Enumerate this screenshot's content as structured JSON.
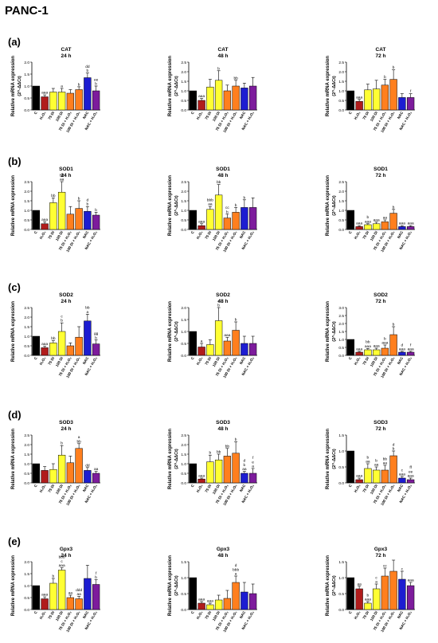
{
  "figure_title": "PANC-1",
  "colors": {
    "C": "#000000",
    "H2O2": "#b01c1c",
    "75 Di": "#ffff33",
    "100 Di": "#ffff33",
    "75 Di + H2O2": "#ff7f1e",
    "100 Di + H2O2": "#ff7f1e",
    "NAC": "#1d1dd1",
    "NAC + H2O2": "#7d1c9c"
  },
  "chart_data": [
    {
      "panel": "(a)",
      "type": "bar",
      "gene": "CAT",
      "time": "24 h",
      "ylabel": "Relative mRNA expression",
      "ylabel2": "(2^-ΔΔCt)",
      "yticks": [
        "0.0",
        "0.5",
        "1.0",
        "1.5",
        "2.0"
      ],
      "ylim": [
        0,
        2.0
      ],
      "categories": [
        "C",
        "H₂O₂",
        "75 Di",
        "100 Di",
        "75 Di + H₂O₂",
        "100 Di + H₂O₂",
        "NAC",
        "NAC + H₂O₂"
      ],
      "values": [
        1.0,
        0.55,
        0.75,
        0.75,
        0.7,
        0.85,
        1.35,
        0.8
      ],
      "errors": [
        0,
        0.08,
        0.15,
        0.15,
        0.15,
        0.12,
        0.2,
        0.2
      ],
      "labels": [
        "",
        "aaa",
        "",
        "a",
        "",
        "b",
        "dd\nb",
        "ee\nb"
      ]
    },
    {
      "panel": "(a)",
      "type": "bar",
      "gene": "CAT",
      "time": "48 h",
      "ylabel": "Relative mRNA expression",
      "ylabel2": "(2^-ΔΔCt)",
      "yticks": [
        "0.0",
        "0.5",
        "1.0",
        "1.5",
        "2.0",
        "2.5"
      ],
      "ylim": [
        0,
        2.5
      ],
      "categories": [
        "C",
        "H₂O₂",
        "75 Di",
        "100 Di",
        "75 Di + H₂O₂",
        "100 Di + H₂O₂",
        "NAC",
        "NAC + H₂O₂"
      ],
      "values": [
        1.0,
        0.5,
        1.2,
        1.55,
        1.0,
        1.25,
        1.15,
        1.25
      ],
      "errors": [
        0,
        0.1,
        0.4,
        0.5,
        0.3,
        0.3,
        0.25,
        0.45
      ],
      "labels": [
        "",
        "aaa",
        "",
        "b",
        "",
        "bb",
        "",
        ""
      ]
    },
    {
      "panel": "(a)",
      "type": "bar",
      "gene": "CAT",
      "time": "72 h",
      "ylabel": "Relative mRNA expression",
      "ylabel2": "(2^-ΔΔCt)",
      "yticks": [
        "0.0",
        "0.5",
        "1.0",
        "1.5",
        "2.0",
        "2.5"
      ],
      "ylim": [
        0,
        2.5
      ],
      "categories": [
        "C",
        "H₂O₂",
        "75 Di",
        "100 Di",
        "75 Di + H₂O₂",
        "100 Di + H₂O₂",
        "NAC",
        "NAC + H₂O₂"
      ],
      "values": [
        1.0,
        0.45,
        1.05,
        1.1,
        1.3,
        1.6,
        0.65,
        0.65
      ],
      "errors": [
        0,
        0.1,
        0.3,
        0.45,
        0.3,
        0.5,
        0.2,
        0.2
      ],
      "labels": [
        "",
        "aaa",
        "",
        "",
        "b",
        "b",
        "",
        "f"
      ]
    },
    {
      "panel": "(b)",
      "type": "bar",
      "gene": "SOD1",
      "time": "24 h",
      "ylabel": "Relative mRNA expression",
      "ylabel2": "",
      "yticks": [
        "0.0",
        "0.5",
        "1.0",
        "1.5",
        "2.0",
        "2.5"
      ],
      "ylim": [
        0,
        2.5
      ],
      "categories": [
        "C",
        "H₂O₂",
        "75 Di",
        "100 Di",
        "75 Di + H₂O₂",
        "100 Di + H₂O₂",
        "NAC",
        "NAC + H₂O₂"
      ],
      "values": [
        1.0,
        0.3,
        1.4,
        1.95,
        0.8,
        1.1,
        0.95,
        0.75
      ],
      "errors": [
        0,
        0.1,
        0.25,
        0.55,
        0.4,
        0.4,
        0.25,
        0.15
      ],
      "labels": [
        "",
        "aaa",
        "bb",
        "bb\naa",
        "",
        "b",
        "d\nb",
        "b"
      ]
    },
    {
      "panel": "(b)",
      "type": "bar",
      "gene": "SOD1",
      "time": "48 h",
      "ylabel": "Relative mRNA expression",
      "ylabel2": "(2^-ΔΔCt)",
      "yticks": [
        "0.0",
        "0.5",
        "1.0",
        "1.5",
        "2.0",
        "2.5"
      ],
      "ylim": [
        0,
        2.5
      ],
      "categories": [
        "C",
        "H₂O₂",
        "75 Di",
        "100 Di",
        "75 Di + H₂O₂",
        "100 Di + H₂O₂",
        "NAC",
        "NAC + H₂O₂"
      ],
      "values": [
        1.0,
        0.2,
        1.05,
        1.8,
        0.6,
        0.9,
        1.15,
        1.15
      ],
      "errors": [
        0,
        0.1,
        0.15,
        0.55,
        0.2,
        0.25,
        0.4,
        0.5
      ],
      "labels": [
        "",
        "aaa",
        "bbb\naa",
        "bb",
        "cc\nb",
        "b",
        "b",
        ""
      ]
    },
    {
      "panel": "(b)",
      "type": "bar",
      "gene": "SOD1",
      "time": "72 h",
      "ylabel": "Relative mRNA expression",
      "ylabel2": "(2^-ΔΔCt)",
      "yticks": [
        "0.0",
        "0.5",
        "1.0",
        "1.5",
        "2.0",
        "2.5"
      ],
      "ylim": [
        0,
        2.5
      ],
      "categories": [
        "C",
        "H₂O₂",
        "75 Di",
        "100 Di",
        "75 Di + H₂O₂",
        "100 Di + H₂O₂",
        "NAC",
        "NAC + H₂O₂"
      ],
      "values": [
        1.0,
        0.15,
        0.25,
        0.3,
        0.4,
        0.85,
        0.15,
        0.15
      ],
      "errors": [
        0,
        0.05,
        0.05,
        0.08,
        0.1,
        0.2,
        0.05,
        0.05
      ],
      "labels": [
        "",
        "aaa",
        "b\naaa",
        "aaa",
        "aa",
        "b",
        "aaa",
        "aaa"
      ]
    },
    {
      "panel": "(c)",
      "type": "bar",
      "gene": "SOD2",
      "time": "24 h",
      "ylabel": "Relative mRNA expression",
      "ylabel2": "",
      "yticks": [
        "0.0",
        "0.5",
        "1.0",
        "1.5",
        "2.0",
        "2.5"
      ],
      "ylim": [
        0,
        2.5
      ],
      "categories": [
        "C",
        "H₂O₂",
        "75 Di",
        "100 Di",
        "75 Di + H₂O₂",
        "100 Di + H₂O₂",
        "NAC",
        "NAC + H₂O₂"
      ],
      "values": [
        1.0,
        0.4,
        0.65,
        1.25,
        0.5,
        0.95,
        1.8,
        0.6
      ],
      "errors": [
        0,
        0.08,
        0.12,
        0.45,
        0.15,
        0.55,
        0.35,
        0.2
      ],
      "labels": [
        "",
        "aaa",
        "bb",
        "c\nb",
        "",
        "",
        "bb\na",
        "gg\nb"
      ]
    },
    {
      "panel": "(c)",
      "type": "bar",
      "gene": "SOD2",
      "time": "48 h",
      "ylabel": "Relative mRNA expression",
      "ylabel2": "(2^-ΔΔCt)",
      "yticks": [
        "0.0",
        "0.5",
        "1.0",
        "1.5",
        "2.0"
      ],
      "ylim": [
        0,
        2.0
      ],
      "categories": [
        "C",
        "H₂O₂",
        "75 Di",
        "100 Di",
        "75 Di + H₂O₂",
        "100 Di + H₂O₂",
        "NAC",
        "NAC + H₂O₂"
      ],
      "values": [
        1.0,
        0.35,
        0.45,
        1.45,
        0.6,
        1.05,
        0.5,
        0.5
      ],
      "errors": [
        0,
        0.15,
        0.2,
        0.55,
        0.15,
        0.35,
        0.3,
        0.3
      ],
      "labels": [
        "",
        "a",
        "",
        "c\nb",
        "aaa",
        "b",
        "",
        ""
      ]
    },
    {
      "panel": "(c)",
      "type": "bar",
      "gene": "SOD2",
      "time": "72 h",
      "ylabel": "Relative mRNA expression",
      "ylabel2": "(2^-ΔΔCt)",
      "yticks": [
        "0.0",
        "0.5",
        "1.0",
        "1.5",
        "2.0",
        "2.5",
        "3.0"
      ],
      "ylim": [
        0,
        3.0
      ],
      "categories": [
        "C",
        "H₂O₂",
        "75 Di",
        "100 Di",
        "75 Di + H₂O₂",
        "100 Di + H₂O₂",
        "NAC",
        "NAC + H₂O₂"
      ],
      "values": [
        1.0,
        0.2,
        0.35,
        0.35,
        0.45,
        1.3,
        0.2,
        0.2
      ],
      "errors": [
        0,
        0.05,
        0.08,
        0.1,
        0.2,
        0.5,
        0.05,
        0.05
      ],
      "labels": [
        "",
        "aaa",
        "bb\naaa",
        "aaa",
        "b\naaa",
        "b",
        "d\naaa",
        "f\naaa"
      ]
    },
    {
      "panel": "(d)",
      "type": "bar",
      "gene": "SOD3",
      "time": "24 h",
      "ylabel": "Relative mRNA expression",
      "ylabel2": "",
      "yticks": [
        "0.0",
        "0.5",
        "1.0",
        "1.5",
        "2.0",
        "2.5"
      ],
      "ylim": [
        0,
        2.5
      ],
      "categories": [
        "C",
        "H₂O₂",
        "75 Di",
        "100 Di",
        "75 Di + H₂O₂",
        "100 Di + H₂O₂",
        "NAC",
        "NAC + H₂O₂"
      ],
      "values": [
        1.0,
        0.65,
        0.7,
        1.45,
        1.05,
        1.8,
        0.65,
        0.5
      ],
      "errors": [
        0,
        0.2,
        0.3,
        0.5,
        0.35,
        0.25,
        0.15,
        0.1
      ],
      "labels": [
        "",
        "",
        "",
        "b",
        "",
        "a\nbb",
        "dd",
        "aa"
      ]
    },
    {
      "panel": "(d)",
      "type": "bar",
      "gene": "SOD3",
      "time": "48 h",
      "ylabel": "Relative mRNA expression",
      "ylabel2": "(2^-ΔΔCt)",
      "yticks": [
        "0.0",
        "0.5",
        "1.0",
        "1.5",
        "2.0",
        "2.5"
      ],
      "ylim": [
        0,
        2.5
      ],
      "categories": [
        "C",
        "H₂O₂",
        "75 Di",
        "100 Di",
        "75 Di + H₂O₂",
        "100 Di + H₂O₂",
        "NAC",
        "NAC + H₂O₂"
      ],
      "values": [
        1.0,
        0.2,
        1.1,
        1.2,
        1.4,
        1.55,
        0.5,
        0.5
      ],
      "errors": [
        0,
        0.05,
        0.35,
        0.3,
        0.4,
        0.6,
        0.1,
        0.25
      ],
      "labels": [
        "",
        "aaa",
        "b",
        "bb",
        "bb",
        "b",
        "d\nb\naa",
        "f\ne\na"
      ]
    },
    {
      "panel": "(d)",
      "type": "bar",
      "gene": "SOD3",
      "time": "72 h",
      "ylabel": "Relative mRNA expression",
      "ylabel2": "(2^-ΔΔCt)",
      "yticks": [
        "0.0",
        "0.5",
        "1.0",
        "1.5"
      ],
      "ylim": [
        0,
        1.5
      ],
      "categories": [
        "C",
        "H₂O₂",
        "75 Di",
        "100 Di",
        "75 Di + H₂O₂",
        "100 Di + H₂O₂",
        "NAC",
        "NAC + H₂O₂"
      ],
      "values": [
        1.0,
        0.1,
        0.45,
        0.4,
        0.4,
        0.85,
        0.15,
        0.1
      ],
      "errors": [
        0,
        0.05,
        0.15,
        0.1,
        0.15,
        0.15,
        0.05,
        0.05
      ],
      "labels": [
        "",
        "aaa",
        "b\naa",
        "b\naa",
        "bb\naa",
        "d\nb",
        "c\naaa",
        "ff\nee\naaa"
      ]
    },
    {
      "panel": "(e)",
      "type": "bar",
      "gene": "Gpx3",
      "time": "24 h",
      "ylabel": "Relative mRNA expression",
      "ylabel2": "",
      "yticks": [
        "0.0",
        "0.5",
        "1.0",
        "1.5",
        "2.0"
      ],
      "ylim": [
        0,
        2.0
      ],
      "categories": [
        "C",
        "H₂O₂",
        "75 Di",
        "100 Di",
        "75 Di + H₂O₂",
        "100 Di + H₂O₂",
        "NAC",
        "NAC + H₂O₂"
      ],
      "values": [
        1.0,
        0.45,
        1.1,
        1.65,
        0.5,
        0.45,
        1.3,
        1.05
      ],
      "errors": [
        0,
        0.08,
        0.2,
        0.1,
        0.1,
        0.1,
        0.55,
        0.2
      ],
      "labels": [
        "",
        "aaa",
        "b",
        "bbb\nc\naaa",
        "aa",
        "ddd\naa",
        "",
        "f\nb"
      ]
    },
    {
      "panel": "(e)",
      "type": "bar",
      "gene": "Gpx3",
      "time": "48 h",
      "ylabel": "Relative mRNA expression",
      "ylabel2": "(2^-ΔΔCt)",
      "yticks": [
        "0.0",
        "0.5",
        "1.0",
        "1.5"
      ],
      "ylim": [
        0,
        1.5
      ],
      "categories": [
        "C",
        "H₂O₂",
        "75 Di",
        "100 Di",
        "75 Di + H₂O₂",
        "100 Di + H₂O₂",
        "NAC",
        "NAC + H₂O₂"
      ],
      "values": [
        1.0,
        0.2,
        0.15,
        0.3,
        0.35,
        0.85,
        0.55,
        0.5
      ],
      "errors": [
        0,
        0.05,
        0.05,
        0.15,
        0.25,
        0.2,
        0.3,
        0.3
      ],
      "labels": [
        "",
        "aaa",
        "aaa",
        "",
        "",
        "d\nbbb\na",
        "",
        ""
      ]
    },
    {
      "panel": "(e)",
      "type": "bar",
      "gene": "Gpx3",
      "time": "72 h",
      "ylabel": "Relative mRNA expression",
      "ylabel2": "(2^-ΔΔCt)",
      "yticks": [
        "0.0",
        "0.5",
        "1.0",
        "1.5"
      ],
      "ylim": [
        0,
        1.5
      ],
      "categories": [
        "C",
        "H₂O₂",
        "75 Di",
        "100 Di",
        "75 Di + H₂O₂",
        "100 Di + H₂O₂",
        "NAC",
        "NAC + H₂O₂"
      ],
      "values": [
        1.0,
        0.65,
        0.2,
        0.65,
        1.05,
        1.2,
        0.95,
        0.75
      ],
      "errors": [
        0,
        0.08,
        0.05,
        0.15,
        0.25,
        0.35,
        0.25,
        0.1
      ],
      "labels": [
        "",
        "aa",
        "b\naaa",
        "c\na",
        "cc",
        "",
        "c",
        "aaa"
      ]
    }
  ]
}
